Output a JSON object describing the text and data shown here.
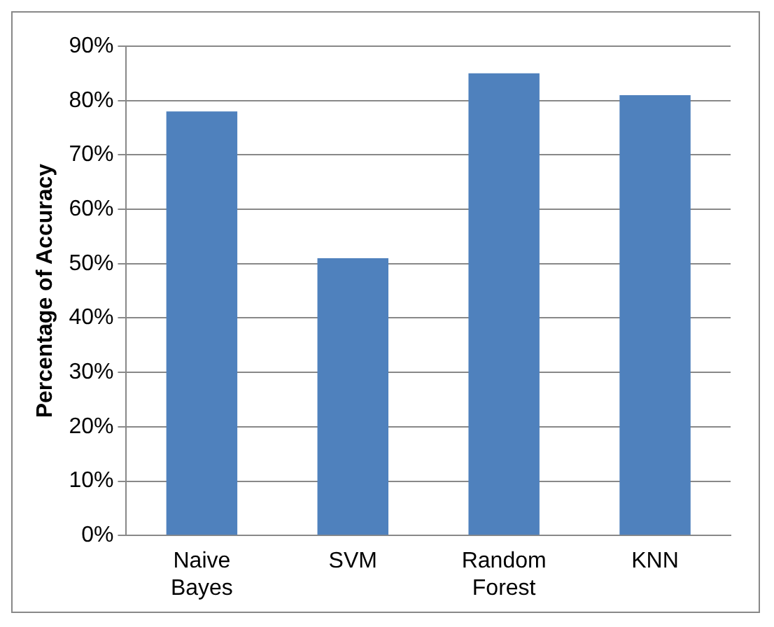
{
  "chart_data": {
    "type": "bar",
    "ylabel": "Percentage of Accuracy",
    "categories": [
      "Naive Bayes",
      "SVM",
      "Random Forest",
      "KNN"
    ],
    "values": [
      78,
      51,
      85,
      81
    ],
    "color": "#4f81bd",
    "ylim": [
      0,
      90
    ],
    "yticks": [
      {
        "value": 0,
        "label": "0%"
      },
      {
        "value": 10,
        "label": "10%"
      },
      {
        "value": 20,
        "label": "20%"
      },
      {
        "value": 30,
        "label": "30%"
      },
      {
        "value": 40,
        "label": "40%"
      },
      {
        "value": 50,
        "label": "50%"
      },
      {
        "value": 60,
        "label": "60%"
      },
      {
        "value": 70,
        "label": "70%"
      },
      {
        "value": 80,
        "label": "80%"
      },
      {
        "value": 90,
        "label": "90%"
      }
    ],
    "grid": "y"
  }
}
